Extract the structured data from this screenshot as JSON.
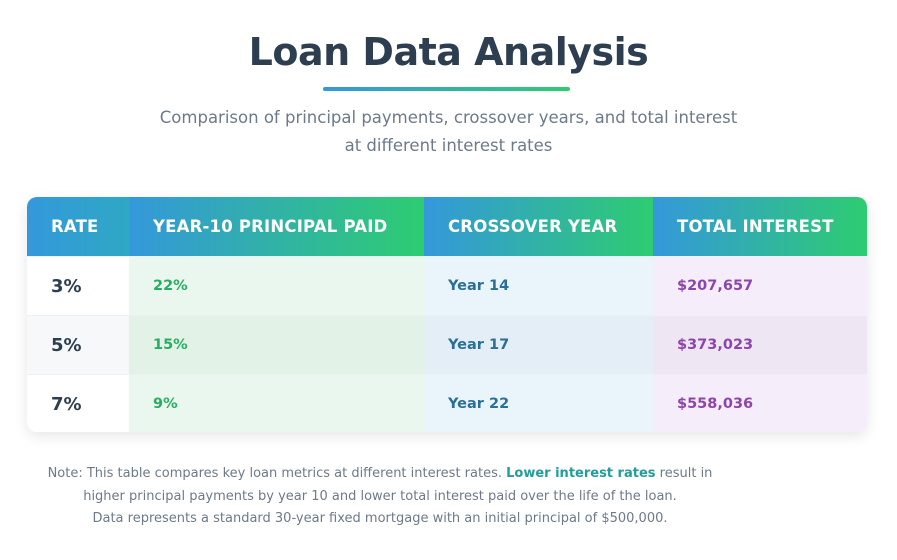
{
  "header": {
    "title": "Loan Data Analysis",
    "subtitle": "Comparison of principal payments, crossover years, and total interest at different interest rates"
  },
  "table": {
    "columns": [
      "RATE",
      "YEAR-10 PRINCIPAL PAID",
      "CROSSOVER YEAR",
      "TOTAL INTEREST"
    ],
    "rows": [
      {
        "rate": "3%",
        "principal": "22%",
        "crossover": "Year 14",
        "interest": "$207,657"
      },
      {
        "rate": "5%",
        "principal": "15%",
        "crossover": "Year 17",
        "interest": "$373,023"
      },
      {
        "rate": "7%",
        "principal": "9%",
        "crossover": "Year 22",
        "interest": "$558,036"
      }
    ]
  },
  "note": {
    "prefix": "Note: This table compares key loan metrics at different interest rates.",
    "highlight": "Lower interest rates",
    "suffix": "result in higher principal payments by year 10 and lower total interest paid over the life of the loan.",
    "line3": "Data represents a standard 30-year fixed mortgage with an initial principal of $500,000."
  },
  "colors": {
    "title": "#2c3e50",
    "gradient_start": "#3498db",
    "gradient_end": "#2ecc71",
    "principal_text": "#27ae60",
    "crossover_text": "#2a6f97",
    "interest_text": "#8e44ad",
    "highlight_text": "#1f9e9a"
  }
}
